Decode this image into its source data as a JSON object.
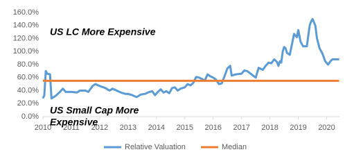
{
  "chart_data": {
    "type": "line",
    "annotations": [
      [
        "US LC More Expensive"
      ],
      [
        "US Small Cap More",
        "Expensive"
      ]
    ],
    "series": [
      {
        "name": "Relative Valuation",
        "color": "#5B9BD5",
        "x": [
          2010.0,
          2010.05,
          2010.1,
          2010.15,
          2010.25,
          2010.3,
          2010.45,
          2010.6,
          2010.7,
          2010.8,
          2011.0,
          2011.2,
          2011.3,
          2011.5,
          2011.6,
          2011.75,
          2011.85,
          2012.0,
          2012.2,
          2012.35,
          2012.45,
          2012.6,
          2012.75,
          2012.9,
          2013.0,
          2013.15,
          2013.3,
          2013.45,
          2013.6,
          2013.75,
          2013.85,
          2013.95,
          2014.05,
          2014.15,
          2014.25,
          2014.35,
          2014.45,
          2014.55,
          2014.65,
          2014.75,
          2014.85,
          2015.0,
          2015.1,
          2015.2,
          2015.3,
          2015.4,
          2015.5,
          2015.6,
          2015.7,
          2015.8,
          2015.9,
          2016.0,
          2016.1,
          2016.2,
          2016.3,
          2016.4,
          2016.5,
          2016.6,
          2016.65,
          2016.8,
          2017.0,
          2017.1,
          2017.2,
          2017.35,
          2017.5,
          2017.6,
          2017.75,
          2017.85,
          2017.95,
          2018.05,
          2018.15,
          2018.25,
          2018.3,
          2018.35,
          2018.4,
          2018.45,
          2018.5,
          2018.55,
          2018.6,
          2018.7,
          2018.85,
          2018.95,
          2019.0,
          2019.08,
          2019.17,
          2019.3,
          2019.4,
          2019.45,
          2019.5,
          2019.6,
          2019.66,
          2019.75,
          2019.85,
          2019.95,
          2020.05,
          2020.15,
          2020.2,
          2020.3,
          2020.44
        ],
        "values": [
          28,
          33,
          70,
          66,
          65,
          28,
          32,
          38,
          43,
          38,
          38,
          37,
          40,
          40,
          38,
          47,
          50,
          47,
          44,
          40,
          43,
          40,
          37,
          35,
          35,
          33,
          30,
          34,
          35,
          38,
          39,
          33,
          38,
          42,
          37,
          39,
          36,
          44,
          45,
          40,
          43,
          45,
          50,
          48,
          52,
          61,
          60,
          58,
          55,
          65,
          62,
          60,
          57,
          50,
          51,
          62,
          74,
          78,
          63,
          65,
          66,
          71,
          70,
          65,
          60,
          75,
          72,
          78,
          83,
          82,
          88,
          84,
          78,
          85,
          83,
          100,
          107,
          105,
          98,
          95,
          127,
          122,
          133,
          115,
          108,
          108,
          140,
          146,
          150,
          140,
          120,
          105,
          97,
          85,
          80,
          86,
          88,
          88,
          88
        ]
      },
      {
        "name": "Median",
        "color": "#ED7D31",
        "x": [
          2010.0,
          2020.44
        ],
        "values": [
          55,
          55
        ]
      }
    ],
    "xlim": [
      2010,
      2020.45
    ],
    "xticks": [
      2010,
      2011,
      2012,
      2013,
      2014,
      2015,
      2016,
      2017,
      2018,
      2019,
      2020
    ],
    "ylim": [
      0,
      160
    ],
    "yticks": [
      {
        "value": 0,
        "label": "0.0%"
      },
      {
        "value": 20,
        "label": "20.0%"
      },
      {
        "value": 40,
        "label": "40.0%"
      },
      {
        "value": 60,
        "label": "60.0%"
      },
      {
        "value": 80,
        "label": "80.0%"
      },
      {
        "value": 100,
        "label": "100.0%"
      },
      {
        "value": 120,
        "label": "120.0%"
      },
      {
        "value": 140,
        "label": "140.0%"
      },
      {
        "value": 160,
        "label": "160.0%"
      }
    ],
    "grid": false,
    "legend": "bottom"
  }
}
